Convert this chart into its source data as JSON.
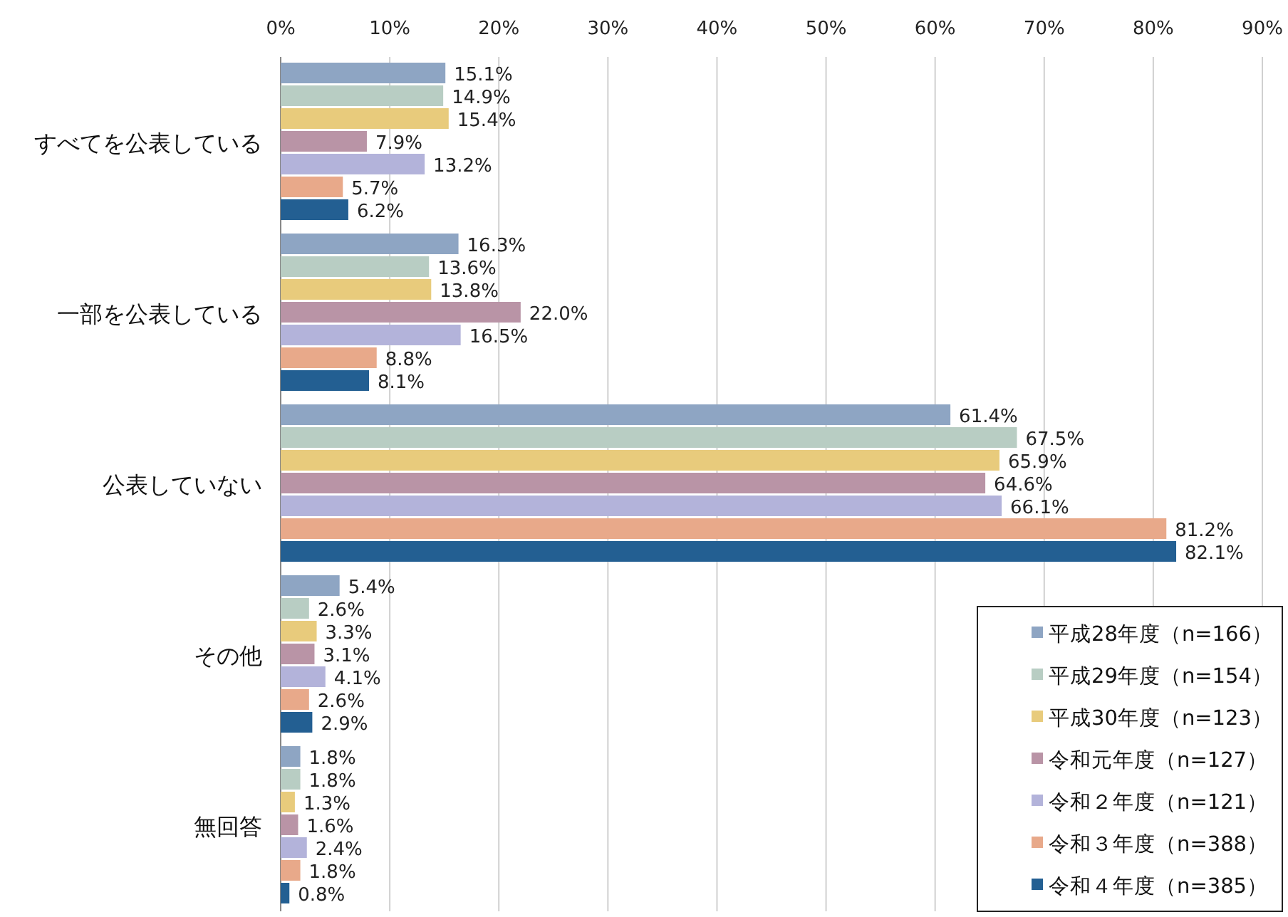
{
  "chart_data": {
    "type": "bar",
    "orientation": "horizontal",
    "categories": [
      "すべてを公表している",
      "一部を公表している",
      "公表していない",
      "その他",
      "無回答"
    ],
    "xlim": [
      0,
      90
    ],
    "xticks": [
      {
        "value": 0,
        "label": "0%"
      },
      {
        "value": 10,
        "label": "10%"
      },
      {
        "value": 20,
        "label": "20%"
      },
      {
        "value": 30,
        "label": "30%"
      },
      {
        "value": 40,
        "label": "40%"
      },
      {
        "value": 50,
        "label": "50%"
      },
      {
        "value": 60,
        "label": "60%"
      },
      {
        "value": 70,
        "label": "70%"
      },
      {
        "value": 80,
        "label": "80%"
      },
      {
        "value": 90,
        "label": "90%"
      }
    ],
    "grid": "x",
    "legend": "bottom right",
    "series": [
      {
        "name": "平成28年度（n=166）",
        "color": "#8ea5c3",
        "values": [
          15.1,
          16.3,
          61.4,
          5.4,
          1.8
        ],
        "value_labels": [
          "15.1%",
          "16.3%",
          "61.4%",
          "5.4%",
          "1.8%"
        ]
      },
      {
        "name": "平成29年度（n=154）",
        "color": "#b8cdc3",
        "values": [
          14.9,
          13.6,
          67.5,
          2.6,
          1.8
        ],
        "value_labels": [
          "14.9%",
          "13.6%",
          "67.5%",
          "2.6%",
          "1.8%"
        ]
      },
      {
        "name": "平成30年度（n=123）",
        "color": "#e8cb7c",
        "values": [
          15.4,
          13.8,
          65.9,
          3.3,
          1.3
        ],
        "value_labels": [
          "15.4%",
          "13.8%",
          "65.9%",
          "3.3%",
          "1.3%"
        ]
      },
      {
        "name": "令和元年度（n=127）",
        "color": "#b994a6",
        "values": [
          7.9,
          22.0,
          64.6,
          3.1,
          1.6
        ],
        "value_labels": [
          "7.9%",
          "22.0%",
          "64.6%",
          "3.1%",
          "1.6%"
        ]
      },
      {
        "name": "令和２年度（n=121）",
        "color": "#b3b3da",
        "values": [
          13.2,
          16.5,
          66.1,
          4.1,
          2.4
        ],
        "value_labels": [
          "13.2%",
          "16.5%",
          "66.1%",
          "4.1%",
          "2.4%"
        ]
      },
      {
        "name": "令和３年度（n=388）",
        "color": "#e8a98a",
        "values": [
          5.7,
          8.8,
          81.2,
          2.6,
          1.8
        ],
        "value_labels": [
          "5.7%",
          "8.8%",
          "81.2%",
          "2.6%",
          "1.8%"
        ]
      },
      {
        "name": "令和４年度（n=385）",
        "color": "#235f92",
        "values": [
          6.2,
          8.1,
          82.1,
          2.9,
          0.8
        ],
        "value_labels": [
          "6.2%",
          "8.1%",
          "82.1%",
          "2.9%",
          "0.8%"
        ]
      }
    ]
  }
}
